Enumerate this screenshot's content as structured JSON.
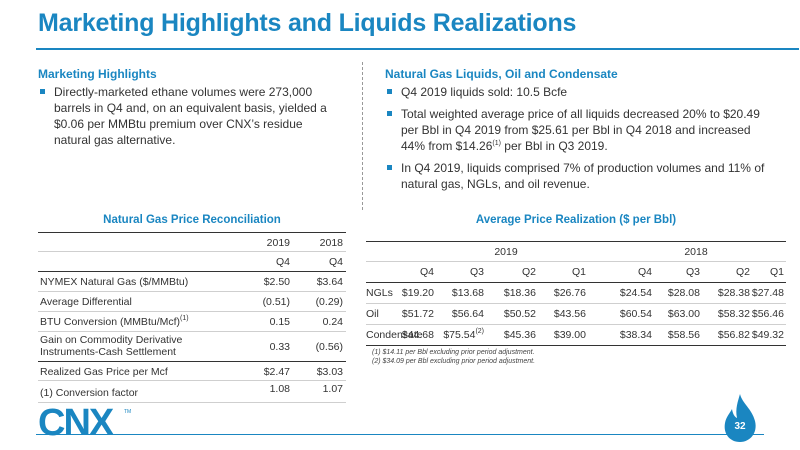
{
  "title": "Marketing Highlights and Liquids Realizations",
  "left_section": {
    "heading": "Marketing Highlights",
    "bullets": [
      "Directly-marketed ethane volumes were 273,000 barrels in Q4 and, on an equivalent basis, yielded a $0.06 per MMBtu premium over CNX’s residue natural gas alternative."
    ]
  },
  "right_section": {
    "heading": "Natural Gas Liquids, Oil and Condensate",
    "bullet1": "Q4 2019 liquids sold: 10.5 Bcfe",
    "bullet2_a": "Total weighted average price of all liquids decreased 20% to $20.49 per Bbl in Q4 2019 from $25.61 per Bbl in Q4 2018 and increased 44% from $14.26",
    "bullet2_sup": "(1)",
    "bullet2_b": " per Bbl in Q3 2019.",
    "bullet3": "In Q4 2019, liquids comprised 7% of production volumes and 11% of natural gas, NGLs, and oil revenue."
  },
  "gas_table": {
    "title": "Natural Gas Price Reconciliation",
    "years": [
      "2019",
      "2018"
    ],
    "quarters": [
      "Q4",
      "Q4"
    ],
    "rows": [
      {
        "label": "NYMEX Natural Gas ($/MMBtu)",
        "v2019": "$2.50",
        "v2018": "$3.64"
      },
      {
        "label": "Average Differential",
        "v2019": "(0.51)",
        "v2018": "(0.29)"
      },
      {
        "label": "BTU Conversion (MMBtu/Mcf)",
        "sup": "(1)",
        "v2019": "0.15",
        "v2018": "0.24"
      },
      {
        "label_line1": "Gain on Commodity Derivative",
        "label_line2": "Instruments-Cash Settlement",
        "v2019": "0.33",
        "v2018": "(0.56)"
      },
      {
        "label": "Realized Gas Price per Mcf",
        "v2019": "$2.47",
        "v2018": "$3.03"
      },
      {
        "label": "(1) Conversion factor",
        "v2019": "1.08",
        "v2018": "1.07"
      }
    ]
  },
  "price_table": {
    "title": "Average Price Realization ($ per Bbl)",
    "years": [
      "2019",
      "2018"
    ],
    "quarters": [
      "Q4",
      "Q3",
      "Q2",
      "Q1",
      "Q4",
      "Q3",
      "Q2",
      "Q1"
    ],
    "rows": [
      {
        "label": "NGLs",
        "values": [
          "$19.20",
          "$13.68",
          "$18.36",
          "$26.76",
          "$24.54",
          "$28.08",
          "$28.38",
          "$27.48"
        ]
      },
      {
        "label": "Oil",
        "values": [
          "$51.72",
          "$56.64",
          "$50.52",
          "$43.56",
          "$60.54",
          "$63.00",
          "$58.32",
          "$56.46"
        ]
      },
      {
        "label": "Condensate",
        "values": [
          "$44.68",
          "$75.54",
          "$45.36",
          "$39.00",
          "$38.34",
          "$58.56",
          "$56.82",
          "$49.32"
        ],
        "sup_index": 1,
        "sup": "(2)"
      }
    ],
    "footnotes": [
      "(1) $14.11 per Bbl excluding prior period adjustment.",
      "(2) $34.09 per Bbl excluding prior period adjustment."
    ]
  },
  "logo": {
    "text": "CNX",
    "tm": "TM"
  },
  "page_number": "32",
  "colors": {
    "accent": "#1a86c1",
    "text": "#333333",
    "rule": "#cfcfcf"
  }
}
